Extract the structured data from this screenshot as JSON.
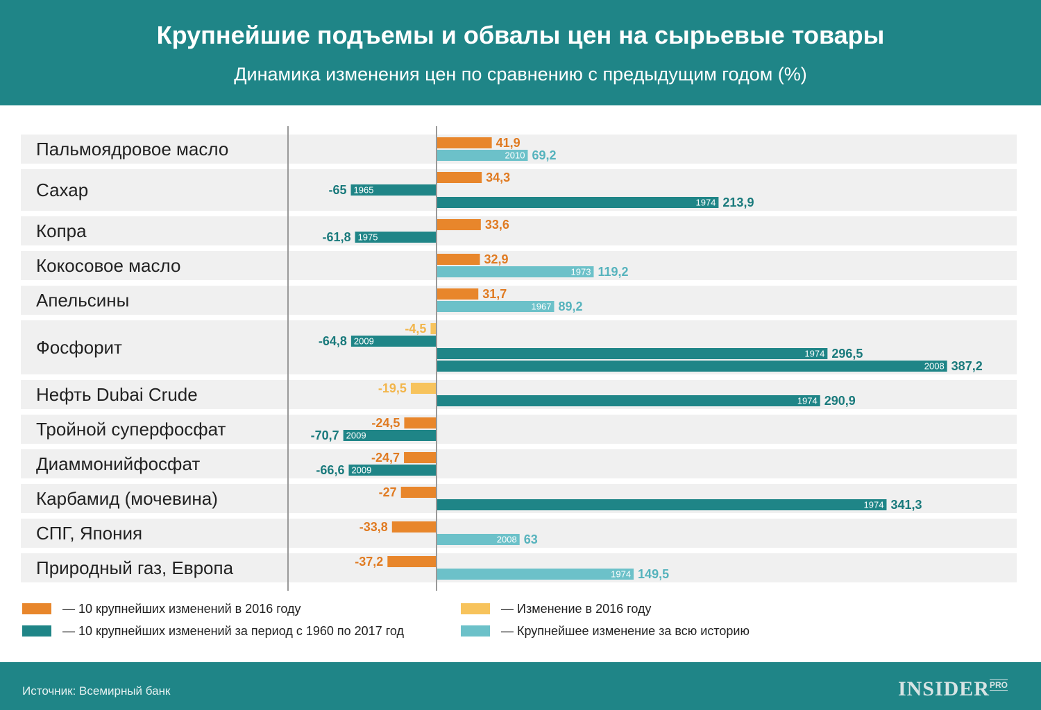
{
  "header": {
    "title": "Крупнейшие подъемы и обвалы цен на сырьевые товары",
    "subtitle": "Динамика изменения цен по сравнению с предыдущим годом (%)"
  },
  "footer": {
    "source": "Источник: Всемирный банк",
    "brand": "INSIDER",
    "brand_sub": "PRO"
  },
  "colors": {
    "orange": "#e8862b",
    "yellow": "#f7c35c",
    "teal": "#1f8587",
    "lightteal": "#6cc1c9",
    "rowbg": "#f0f0f0"
  },
  "chart_data": {
    "type": "bar",
    "orientation": "horizontal",
    "title": "Крупнейшие подъемы и обвалы цен на сырьевые товары",
    "subtitle": "Динамика изменения цен по сравнению с предыдущим годом (%)",
    "legend": [
      {
        "key": "orange",
        "label": "— 10 крупнейших изменений в 2016 году"
      },
      {
        "key": "teal",
        "label": "— 10 крупнейших изменений за период с 1960 по 2017 год"
      },
      {
        "key": "yellow",
        "label": "— Изменение в 2016 году"
      },
      {
        "key": "lightteal",
        "label": "— Крупнейшее изменение за всю историю"
      }
    ],
    "categories": [
      {
        "name": "Пальмоядровое масло",
        "bars": [
          {
            "type": "orange",
            "value": 41.9,
            "label": "41,9"
          },
          {
            "type": "lightteal",
            "value": 69.2,
            "label": "69,2",
            "year": "2010"
          }
        ]
      },
      {
        "name": "Сахар",
        "bars": [
          {
            "type": "orange",
            "value": 34.3,
            "label": "34,3"
          },
          {
            "type": "teal",
            "value": -65,
            "label": "-65",
            "year": "1965"
          },
          {
            "type": "teal",
            "value": 213.9,
            "label": "213,9",
            "year": "1974"
          }
        ]
      },
      {
        "name": "Копра",
        "bars": [
          {
            "type": "orange",
            "value": 33.6,
            "label": "33,6"
          },
          {
            "type": "teal",
            "value": -61.8,
            "label": "-61,8",
            "year": "1975"
          }
        ]
      },
      {
        "name": "Кокосовое масло",
        "bars": [
          {
            "type": "orange",
            "value": 32.9,
            "label": "32,9"
          },
          {
            "type": "lightteal",
            "value": 119.2,
            "label": "119,2",
            "year": "1973"
          }
        ]
      },
      {
        "name": "Апельсины",
        "bars": [
          {
            "type": "orange",
            "value": 31.7,
            "label": "31,7"
          },
          {
            "type": "lightteal",
            "value": 89.2,
            "label": "89,2",
            "year": "1967"
          }
        ]
      },
      {
        "name": "Фосфорит",
        "bars": [
          {
            "type": "yellow",
            "value": -4.5,
            "label": "-4,5"
          },
          {
            "type": "teal",
            "value": -64.8,
            "label": "-64,8",
            "year": "2009"
          },
          {
            "type": "teal",
            "value": 296.5,
            "label": "296,5",
            "year": "1974"
          },
          {
            "type": "teal",
            "value": 387.2,
            "label": "387,2",
            "year": "2008"
          }
        ]
      },
      {
        "name": "Нефть Dubai Crude",
        "bars": [
          {
            "type": "yellow",
            "value": -19.5,
            "label": "-19,5"
          },
          {
            "type": "teal",
            "value": 290.9,
            "label": "290,9",
            "year": "1974"
          }
        ]
      },
      {
        "name": "Тройной суперфосфат",
        "bars": [
          {
            "type": "orange",
            "value": -24.5,
            "label": "-24,5"
          },
          {
            "type": "teal",
            "value": -70.7,
            "label": "-70,7",
            "year": "2009"
          }
        ]
      },
      {
        "name": "Диаммонийфосфат",
        "bars": [
          {
            "type": "orange",
            "value": -24.7,
            "label": "-24,7"
          },
          {
            "type": "teal",
            "value": -66.6,
            "label": "-66,6",
            "year": "2009"
          }
        ]
      },
      {
        "name": "Карбамид (мочевина)",
        "bars": [
          {
            "type": "orange",
            "value": -27,
            "label": "-27"
          },
          {
            "type": "teal",
            "value": 341.3,
            "label": "341,3",
            "year": "1974"
          }
        ]
      },
      {
        "name": "СПГ, Япония",
        "bars": [
          {
            "type": "orange",
            "value": -33.8,
            "label": "-33,8"
          },
          {
            "type": "lightteal",
            "value": 63,
            "label": "63",
            "year": "2008"
          }
        ]
      },
      {
        "name": "Природный газ, Европа",
        "bars": [
          {
            "type": "orange",
            "value": -37.2,
            "label": "-37,2"
          },
          {
            "type": "lightteal",
            "value": 149.5,
            "label": "149,5",
            "year": "1974"
          }
        ]
      }
    ]
  }
}
